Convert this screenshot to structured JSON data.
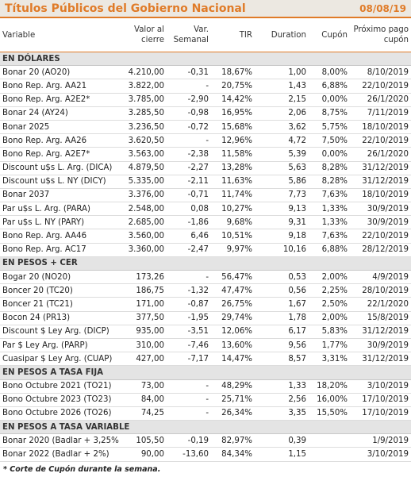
{
  "header": {
    "title": "Títulos Públicos del Gobierno Nacional",
    "date": "08/08/19"
  },
  "columns": [
    "Variable",
    "Valor al cierre",
    "Var. Semanal",
    "TIR",
    "Duration",
    "Cupón",
    "Próximo pago cupón"
  ],
  "sections": [
    {
      "name": "EN DÓLARES",
      "rows": [
        [
          "Bonar 20 (AO20)",
          "4.210,00",
          "-0,31",
          "18,67%",
          "1,00",
          "8,00%",
          "8/10/2019"
        ],
        [
          "Bono Rep. Arg. AA21",
          "3.822,00",
          "-",
          "20,75%",
          "1,43",
          "6,88%",
          "22/10/2019"
        ],
        [
          "Bono Rep. Arg. A2E2*",
          "3.785,00",
          "-2,90",
          "14,42%",
          "2,15",
          "0,00%",
          "26/1/2020"
        ],
        [
          "Bonar 24 (AY24)",
          "3.285,50",
          "-0,98",
          "16,95%",
          "2,06",
          "8,75%",
          "7/11/2019"
        ],
        [
          "Bonar 2025",
          "3.236,50",
          "-0,72",
          "15,68%",
          "3,62",
          "5,75%",
          "18/10/2019"
        ],
        [
          "Bono Rep. Arg. AA26",
          "3.620,50",
          "-",
          "12,96%",
          "4,72",
          "7,50%",
          "22/10/2019"
        ],
        [
          "Bono Rep. Arg. A2E7*",
          "3.563,00",
          "-2,38",
          "11,58%",
          "5,39",
          "0,00%",
          "26/1/2020"
        ],
        [
          "Discount u$s L. Arg. (DICA)",
          "4.879,50",
          "-2,27",
          "13,28%",
          "5,63",
          "8,28%",
          "31/12/2019"
        ],
        [
          "Discount u$s L. NY (DICY)",
          "5.335,00",
          "-2,11",
          "11,63%",
          "5,86",
          "8,28%",
          "31/12/2019"
        ],
        [
          "Bonar 2037",
          "3.376,00",
          "-0,71",
          "11,74%",
          "7,73",
          "7,63%",
          "18/10/2019"
        ],
        [
          "Par u$s L. Arg. (PARA)",
          "2.548,00",
          "0,08",
          "10,27%",
          "9,13",
          "1,33%",
          "30/9/2019"
        ],
        [
          "Par u$s L. NY (PARY)",
          "2.685,00",
          "-1,86",
          "9,68%",
          "9,31",
          "1,33%",
          "30/9/2019"
        ],
        [
          "Bono Rep. Arg. AA46",
          "3.560,00",
          "6,46",
          "10,51%",
          "9,18",
          "7,63%",
          "22/10/2019"
        ],
        [
          "Bono Rep. Arg. AC17",
          "3.360,00",
          "-2,47",
          "9,97%",
          "10,16",
          "6,88%",
          "28/12/2019"
        ]
      ]
    },
    {
      "name": "EN PESOS + CER",
      "rows": [
        [
          "Bogar 20 (NO20)",
          "173,26",
          "-",
          "56,47%",
          "0,53",
          "2,00%",
          "4/9/2019"
        ],
        [
          "Boncer 20 (TC20)",
          "186,75",
          "-1,32",
          "47,47%",
          "0,56",
          "2,25%",
          "28/10/2019"
        ],
        [
          "Boncer 21 (TC21)",
          "171,00",
          "-0,87",
          "26,75%",
          "1,67",
          "2,50%",
          "22/1/2020"
        ],
        [
          "Bocon 24 (PR13)",
          "377,50",
          "-1,95",
          "29,74%",
          "1,78",
          "2,00%",
          "15/8/2019"
        ],
        [
          "Discount $ Ley Arg. (DICP)",
          "935,00",
          "-3,51",
          "12,06%",
          "6,17",
          "5,83%",
          "31/12/2019"
        ],
        [
          "Par $ Ley Arg. (PARP)",
          "310,00",
          "-7,46",
          "13,60%",
          "9,56",
          "1,77%",
          "30/9/2019"
        ],
        [
          "Cuasipar $ Ley Arg. (CUAP)",
          "427,00",
          "-7,17",
          "14,47%",
          "8,57",
          "3,31%",
          "31/12/2019"
        ]
      ]
    },
    {
      "name": "EN PESOS A TASA FIJA",
      "rows": [
        [
          "Bono Octubre 2021 (TO21)",
          "73,00",
          "-",
          "48,29%",
          "1,33",
          "18,20%",
          "3/10/2019"
        ],
        [
          "Bono Octubre 2023 (TO23)",
          "84,00",
          "-",
          "25,71%",
          "2,56",
          "16,00%",
          "17/10/2019"
        ],
        [
          "Bono Octubre 2026 (TO26)",
          "74,25",
          "-",
          "26,34%",
          "3,35",
          "15,50%",
          "17/10/2019"
        ]
      ]
    },
    {
      "name": "EN PESOS A TASA VARIABLE",
      "rows": [
        [
          "Bonar 2020 (Badlar + 3,25%",
          "105,50",
          "-0,19",
          "82,97%",
          "0,39",
          null,
          "1/9/2019"
        ],
        [
          "Bonar 2022 (Badlar + 2%)",
          "90,00",
          "-13,60",
          "84,34%",
          "1,15",
          null,
          "3/10/2019"
        ]
      ]
    }
  ],
  "footnote": "* Corte de Cupón durante la semana."
}
